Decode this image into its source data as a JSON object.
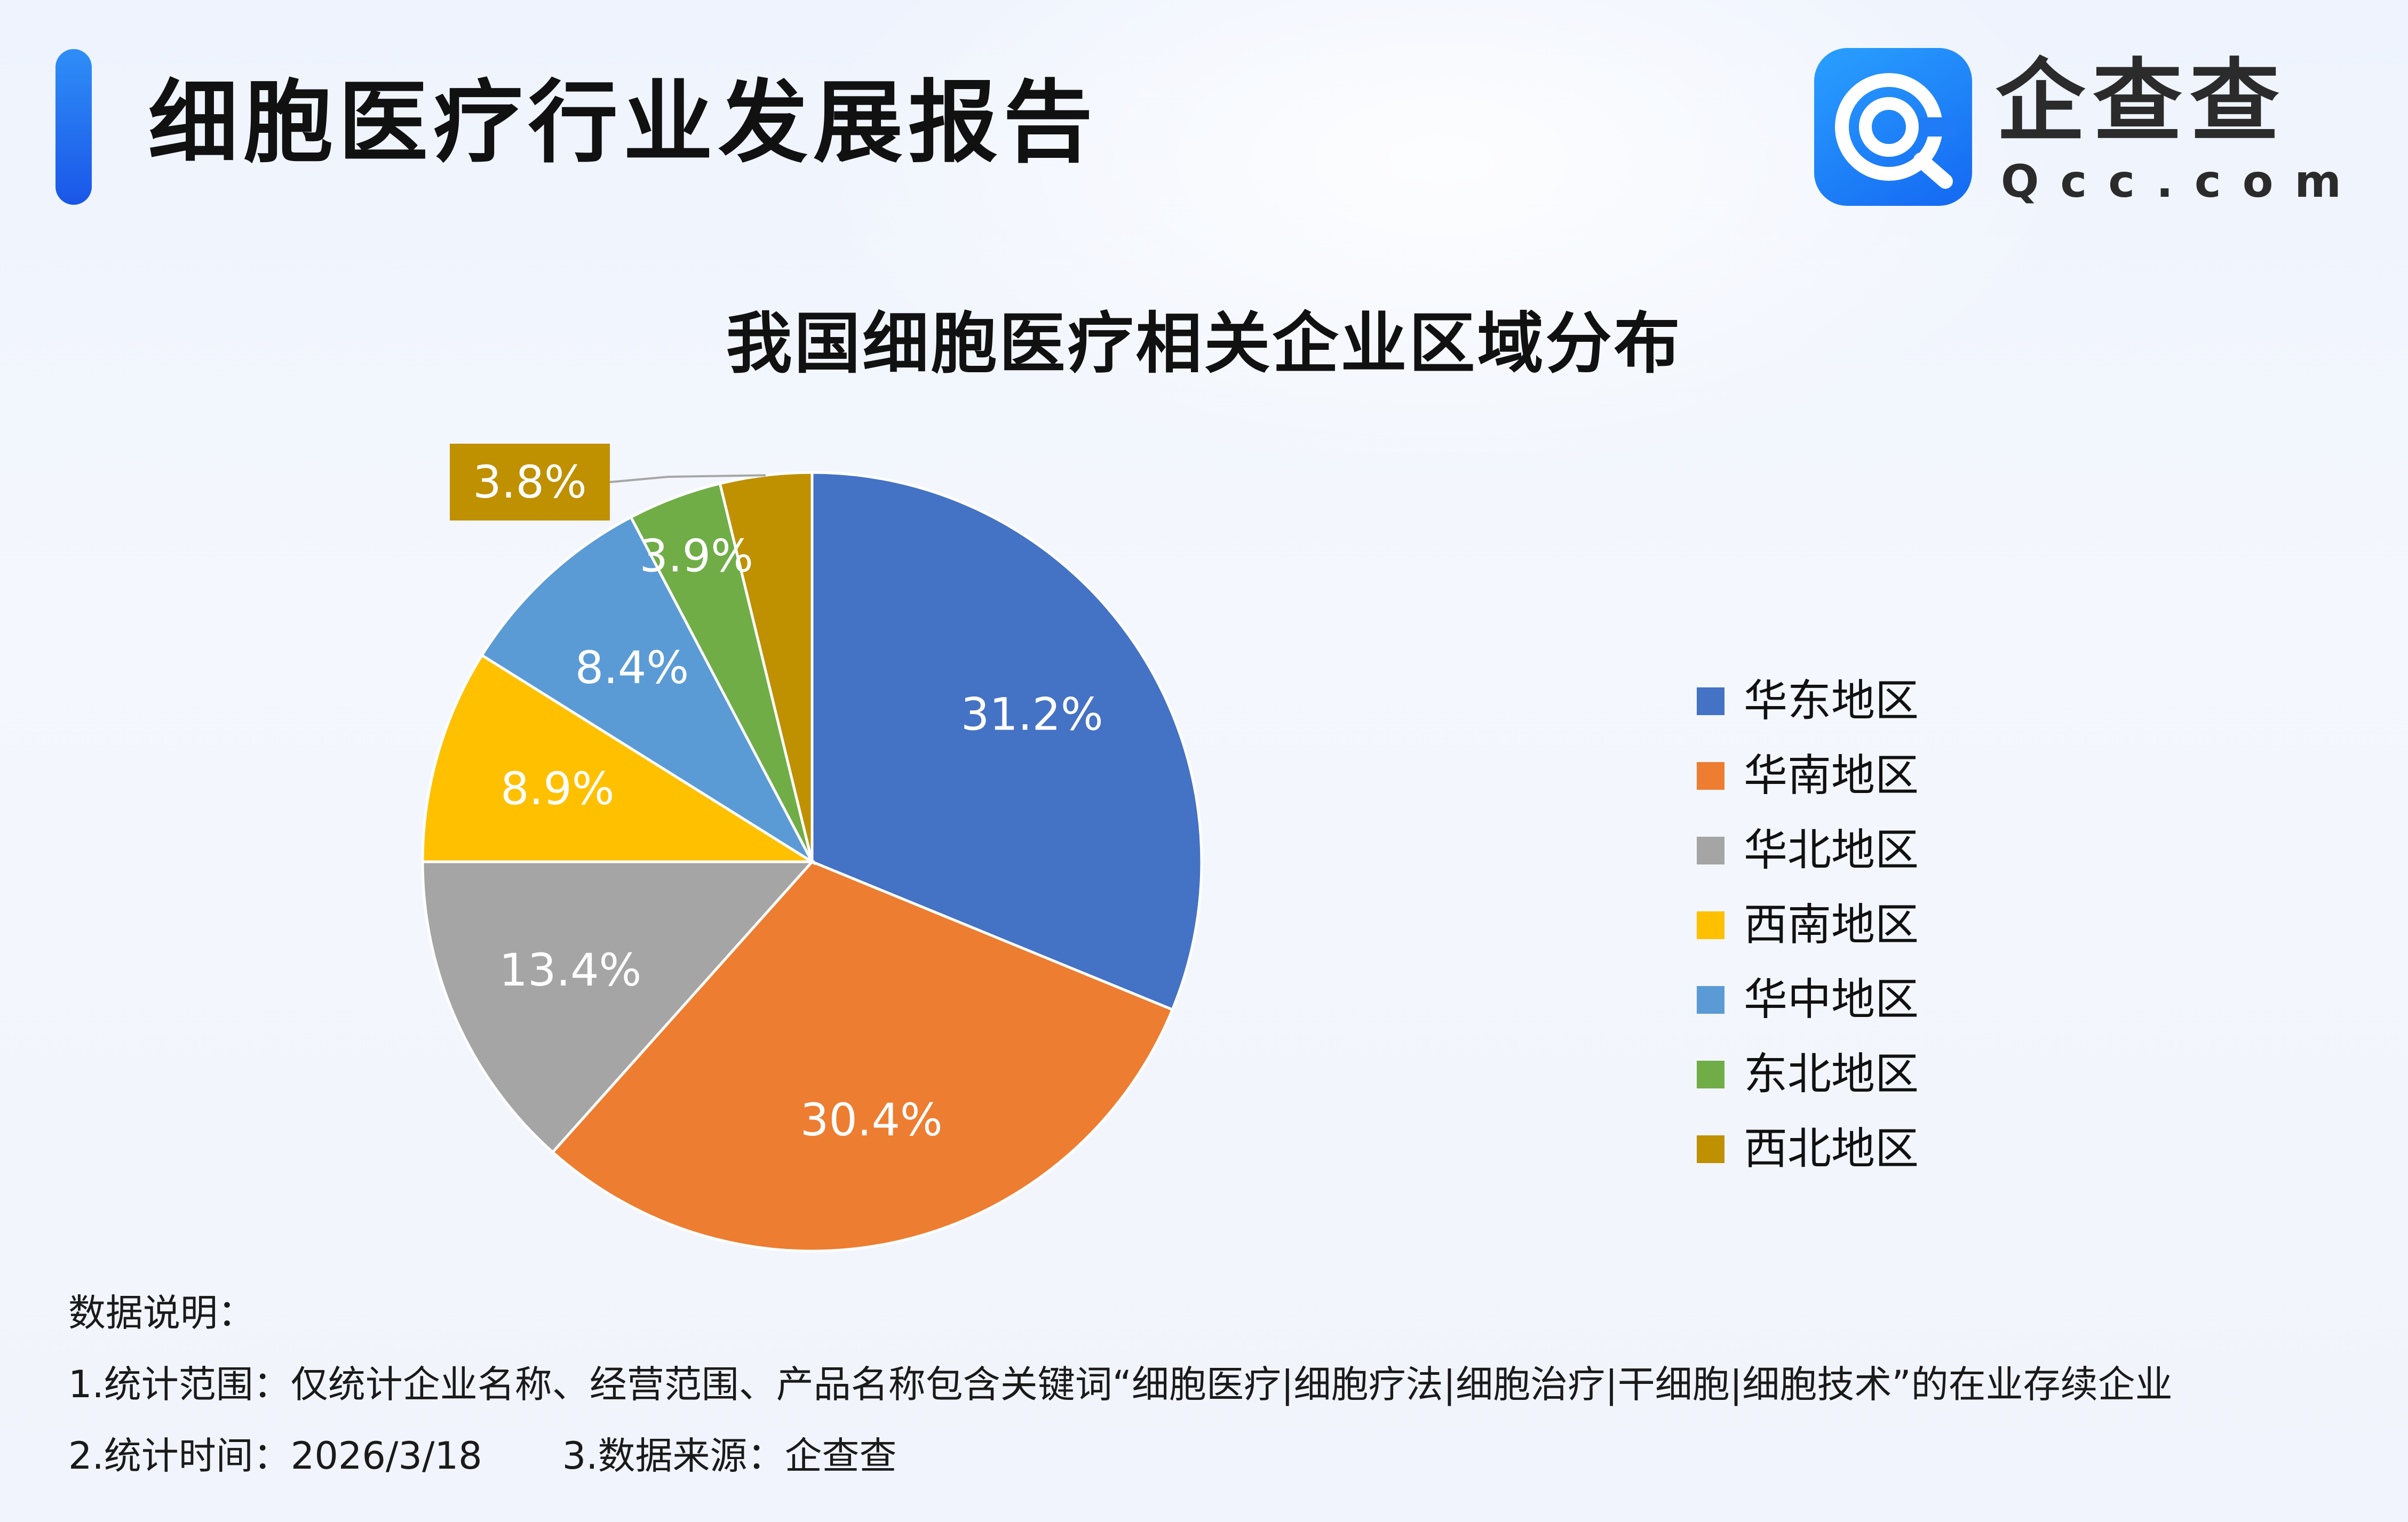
{
  "header": {
    "report_title": "细胞医疗行业发展报告",
    "logo": {
      "name": "企查查",
      "domain": "Qcc.com"
    }
  },
  "chart_data": {
    "type": "pie",
    "title": "我国细胞医疗相关企业区域分布",
    "unit": "%",
    "legend_position": "right",
    "slices": [
      {
        "label": "华东地区",
        "value": 31.2,
        "display": "31.2%",
        "color": "#4472c4"
      },
      {
        "label": "华南地区",
        "value": 30.4,
        "display": "30.4%",
        "color": "#ed7d31"
      },
      {
        "label": "华北地区",
        "value": 13.4,
        "display": "13.4%",
        "color": "#a5a5a5"
      },
      {
        "label": "西南地区",
        "value": 8.9,
        "display": "8.9%",
        "color": "#ffc000"
      },
      {
        "label": "华中地区",
        "value": 8.4,
        "display": "8.4%",
        "color": "#5b9bd5"
      },
      {
        "label": "东北地区",
        "value": 3.9,
        "display": "3.9%",
        "color": "#70ad47"
      },
      {
        "label": "西北地区",
        "value": 3.8,
        "display": "3.8%",
        "color": "#bf9000"
      }
    ]
  },
  "notes": {
    "heading": "数据说明：",
    "scope": "1.统计范围：仅统计企业名称、经营范围、产品名称包含关键词“细胞医疗|细胞疗法|细胞治疗|干细胞|细胞技术”的在业存续企业",
    "time": "2.统计时间：2026/3/18",
    "source": "3.数据来源：企查查"
  },
  "colors": {
    "accent": "#1a56e8",
    "title_text": "#111111"
  }
}
